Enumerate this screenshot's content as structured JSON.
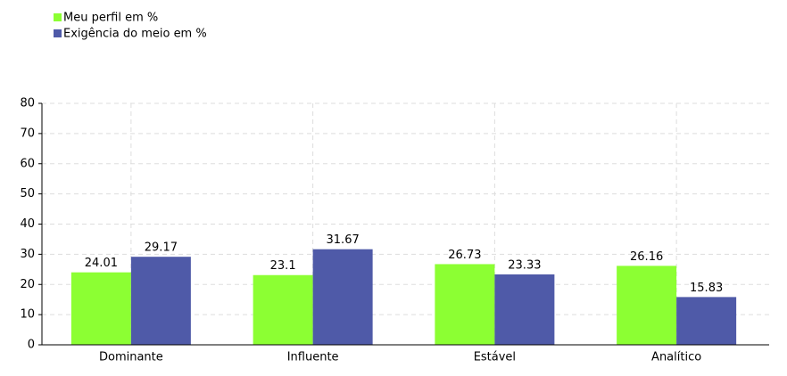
{
  "chart_data": {
    "type": "bar",
    "categories": [
      "Dominante",
      "Influente",
      "Estável",
      "Analítico"
    ],
    "series": [
      {
        "name": "Meu perfil em %",
        "color": "#8cff33",
        "values": [
          24.01,
          23.1,
          26.73,
          26.16
        ]
      },
      {
        "name": "Exigência do meio em %",
        "color": "#4f5aa8",
        "values": [
          29.17,
          31.67,
          23.33,
          15.83
        ]
      }
    ],
    "ylim": [
      0,
      80
    ],
    "yticks": [
      0,
      10,
      20,
      30,
      40,
      50,
      60,
      70,
      80
    ],
    "grid": true,
    "legend": "top-left"
  }
}
